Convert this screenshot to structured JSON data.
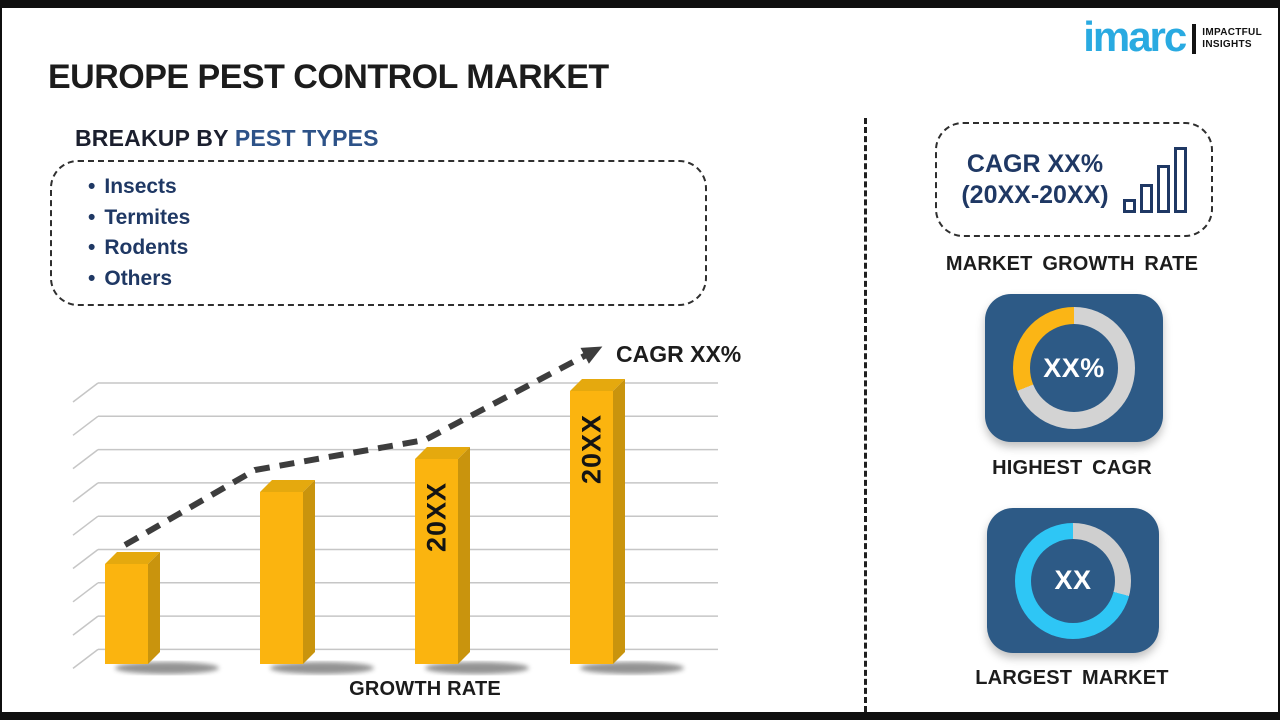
{
  "logo": {
    "brand": "imarc",
    "tagline_line1": "IMPACTFUL",
    "tagline_line2": "INSIGHTS",
    "brand_color": "#29aae1"
  },
  "title": "EUROPE PEST CONTROL MARKET",
  "breakup": {
    "heading_prefix": "BREAKUP BY ",
    "heading_accent": "PEST TYPES",
    "items": [
      "Insects",
      "Termites",
      "Rodents",
      "Others"
    ],
    "bullet": "•",
    "text_color": "#1f3864"
  },
  "chart_data": {
    "type": "bar",
    "title": "",
    "xlabel": "GROWTH RATE",
    "ylabel": "",
    "bar_labels": [
      "",
      "",
      "20XX",
      "20XX"
    ],
    "values_relative": [
      100,
      172,
      205,
      273
    ],
    "trend": {
      "label": "CAGR XX%",
      "shape": "rising-dashed-arrow",
      "points_rel": [
        [
          55,
          207
        ],
        [
          185,
          132
        ],
        [
          355,
          102
        ],
        [
          520,
          15
        ]
      ]
    },
    "bar_color": "#FBB40F",
    "bar_side_color": "#C9940D",
    "bar_top_color": "#E5A90E",
    "grid_color": "#c6c6c6",
    "gridline_count": 9,
    "legend": "none",
    "grid": "on"
  },
  "panel": {
    "growth_card": {
      "line1": "CAGR XX%",
      "line2": "(20XX-20XX)",
      "caption": "MARKET GROWTH RATE",
      "icon": "ascending-bars-icon",
      "text_color": "#1f3864"
    },
    "donuts": [
      {
        "value": "XX%",
        "caption": "HIGHEST CAGR",
        "tile_color": "#2d5a86",
        "track_color": "#d3d3d3",
        "fill_color": "#fbb515",
        "track_end_deg": 248
      },
      {
        "value": "XX",
        "caption": "LARGEST MARKET",
        "tile_color": "#2d5a86",
        "track_color": "#cfcfcf",
        "fill_color": "#2ec6f5",
        "track_end_deg": 105
      }
    ]
  }
}
